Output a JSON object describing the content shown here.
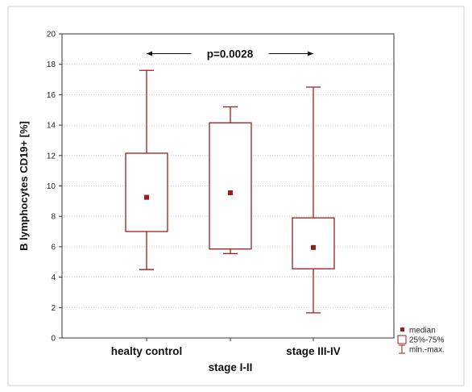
{
  "chart_data": {
    "type": "box",
    "ylabel": "B lymphocytes CD19+ [%]",
    "xlabel": "",
    "ylim": [
      0,
      20
    ],
    "yticks": [
      0,
      2,
      4,
      6,
      8,
      10,
      12,
      14,
      16,
      18,
      20
    ],
    "grid": "horizontal dotted",
    "categories": [
      "healty control",
      "stage I-II",
      "stage III-IV"
    ],
    "boxes": [
      {
        "label": "healty control",
        "min": 4.5,
        "q1": 7.0,
        "median": 9.25,
        "q3": 12.15,
        "max": 17.6
      },
      {
        "label": "stage I-II",
        "min": 5.55,
        "q1": 5.85,
        "median": 9.55,
        "q3": 14.15,
        "max": 15.2
      },
      {
        "label": "stage III-IV",
        "min": 1.65,
        "q1": 4.55,
        "median": 5.95,
        "q3": 7.9,
        "max": 16.5
      }
    ],
    "annotation": {
      "text": "p=0.0028",
      "from": "healty control",
      "to": "stage III-IV",
      "y": 18.7
    },
    "legend": {
      "position": "bottom-right",
      "items": [
        {
          "label": "median",
          "symbol": "square"
        },
        {
          "label": "25%-75%",
          "symbol": "box"
        },
        {
          "label": "min.-max.",
          "symbol": "whisker"
        }
      ]
    },
    "colors": {
      "series": "#9b1c1c",
      "axis": "#333333",
      "grid": "#c8c8c8"
    }
  }
}
